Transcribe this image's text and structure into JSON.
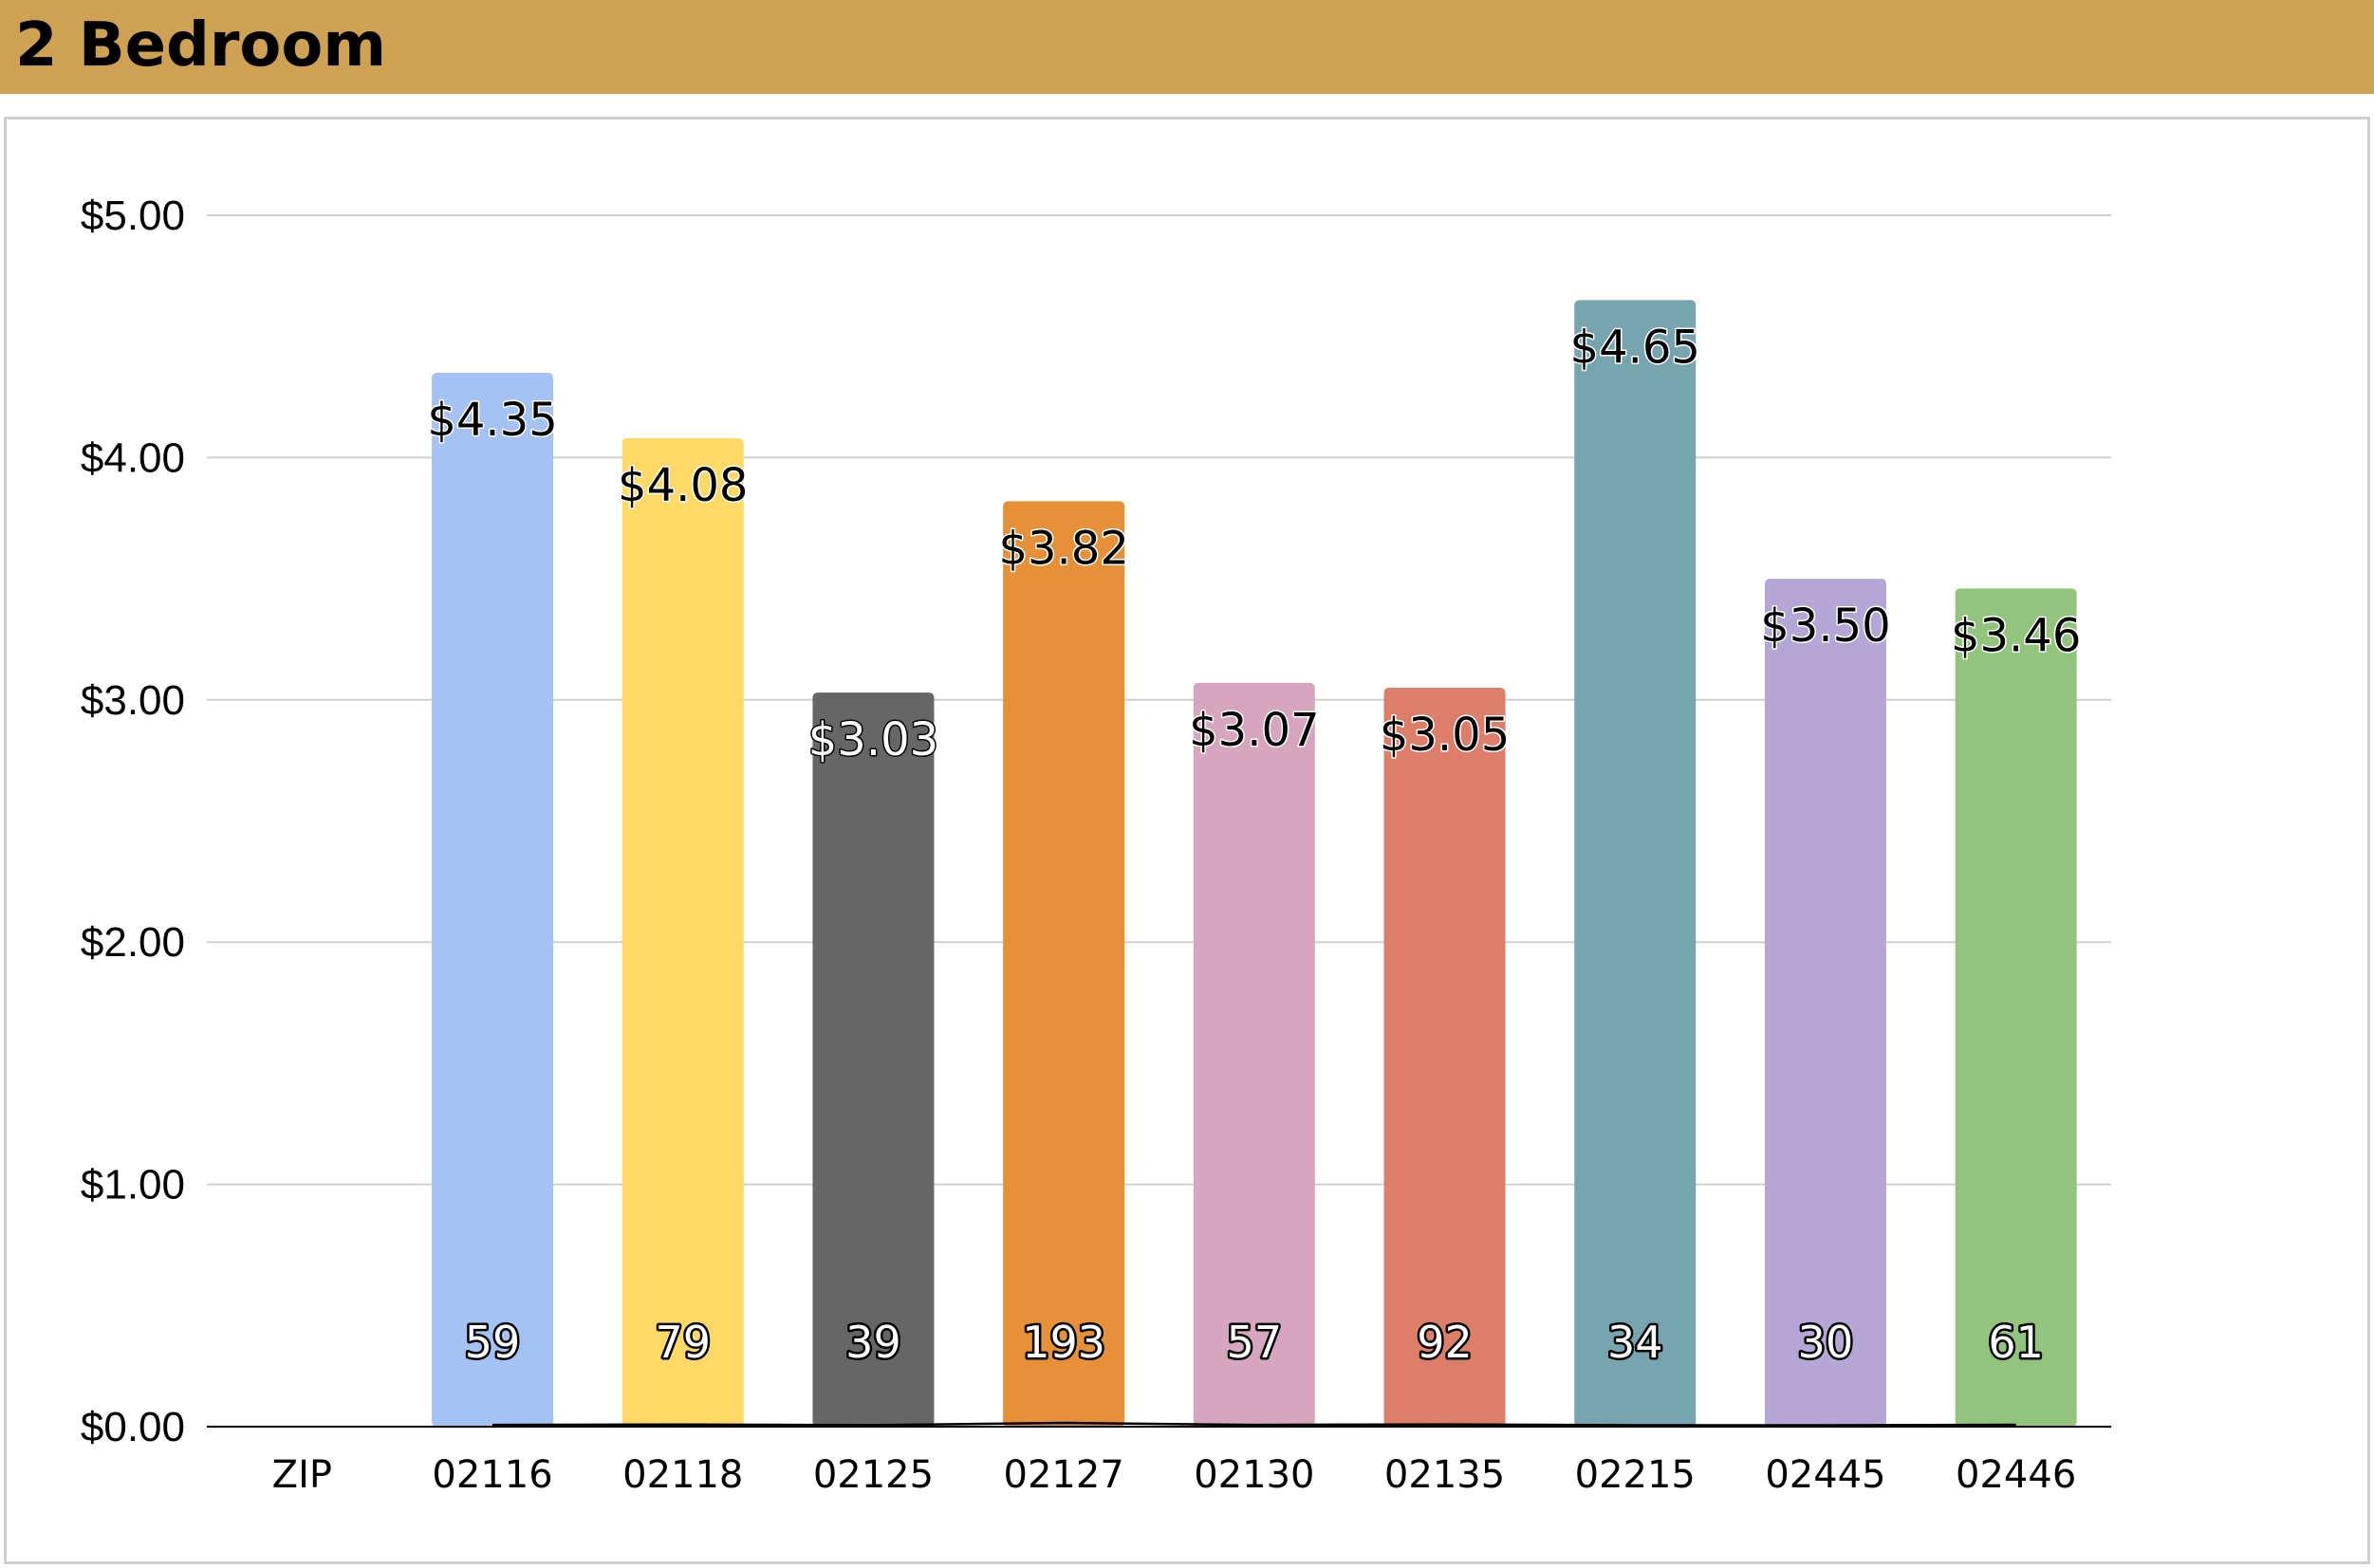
{
  "header": {
    "title": "2 Bedroom"
  },
  "chart_data": {
    "type": "bar",
    "title": "",
    "xlabel": "",
    "ylabel": "",
    "categories": [
      "ZIP",
      "02116",
      "02118",
      "02125",
      "02127",
      "02130",
      "02135",
      "02215",
      "02445",
      "02446"
    ],
    "series": [
      {
        "values": [
          null,
          4.35,
          4.08,
          3.03,
          3.82,
          3.07,
          3.05,
          4.65,
          3.5,
          3.46
        ],
        "value_labels": [
          "",
          "$4.35",
          "$4.08",
          "$3.03",
          "$3.82",
          "$3.07",
          "$3.05",
          "$4.65",
          "$3.50",
          "$3.46"
        ],
        "colors": [
          "",
          "#a4c2f4",
          "#ffd966",
          "#666666",
          "#e69138",
          "#d5a6bd",
          "#dd7e6b",
          "#76a5af",
          "#b4a7d6",
          "#93c47d"
        ],
        "label_colors": [
          "",
          "#000000",
          "#000000",
          "#ffffff",
          "#000000",
          "#000000",
          "#000000",
          "#000000",
          "#000000",
          "#000000"
        ]
      },
      {
        "values": [
          null,
          59,
          79,
          39,
          193,
          57,
          92,
          34,
          30,
          61
        ],
        "labels": [
          "",
          "59",
          "79",
          "39",
          "193",
          "57",
          "92",
          "34",
          "30",
          "61"
        ]
      }
    ],
    "ylim": [
      0,
      5
    ],
    "yticks": [
      0,
      1,
      2,
      3,
      4,
      5
    ],
    "ytick_labels": [
      "$0.00",
      "$1.00",
      "$2.00",
      "$3.00",
      "$4.00",
      "$5.00"
    ],
    "grid": true,
    "legend": "none"
  }
}
